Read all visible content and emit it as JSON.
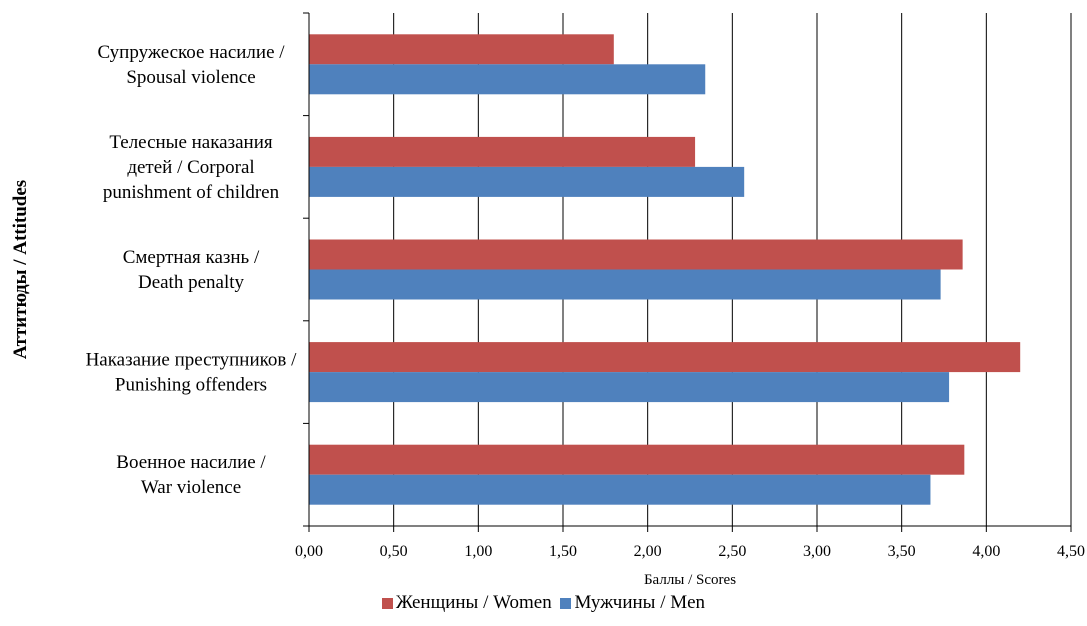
{
  "chart_data": {
    "type": "bar",
    "orientation": "horizontal",
    "title": "",
    "xlabel": "Баллы / Scores",
    "ylabel": "Аттитюды / Attitudes",
    "xlim": [
      0,
      4.5
    ],
    "xticks": [
      "0,00",
      "0,50",
      "1,00",
      "1,50",
      "2,00",
      "2,50",
      "3,00",
      "3,50",
      "4,00",
      "4,50"
    ],
    "grid": "vertical",
    "legend_position": "bottom",
    "categories": [
      [
        "Супружеское насилие /",
        "Spousal violence"
      ],
      [
        "Телесные наказания",
        "детей / Corporal",
        "punishment of children"
      ],
      [
        "Смертная казнь /",
        "Death penalty"
      ],
      [
        "Наказание преступников /",
        "Punishing offenders"
      ],
      [
        "Военное насилие /",
        "War violence"
      ]
    ],
    "series": [
      {
        "name": "Женщины / Women",
        "color": "#c0504d",
        "values": [
          1.8,
          2.28,
          3.86,
          4.2,
          3.87
        ]
      },
      {
        "name": "Мужчины / Men",
        "color": "#4f81bd",
        "values": [
          2.34,
          2.57,
          3.73,
          3.78,
          3.67
        ]
      }
    ]
  }
}
